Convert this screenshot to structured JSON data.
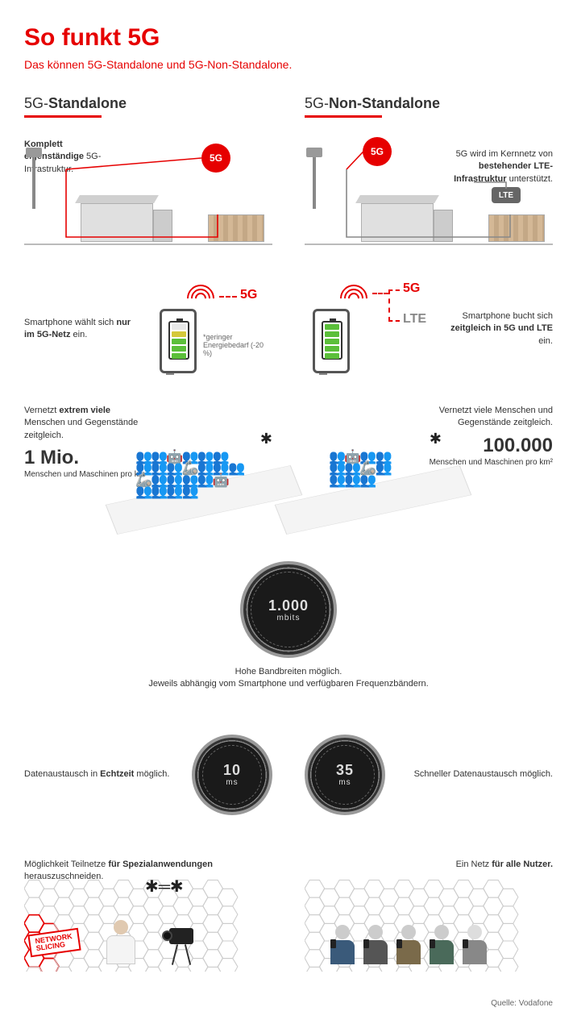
{
  "colors": {
    "accent": "#e60000",
    "text": "#333333",
    "text_light": "#666666",
    "battery_green": "#5bbf3a",
    "battery_yellow": "#d4c83a",
    "gauge_dark": "#1a1a1a",
    "gauge_ring": "#888888",
    "hex_gray": "#cccccc",
    "hex_red": "#e60000"
  },
  "header": {
    "title": "So funkt 5G",
    "subtitle": "Das können 5G-Standalone und 5G-Non-Standalone."
  },
  "columns": {
    "left": {
      "prefix": "5G-",
      "name": "Standalone"
    },
    "right": {
      "prefix": "5G-",
      "name": "Non-Standalone"
    }
  },
  "row1": {
    "left": {
      "text_html": "<b>Komplett eigenständige</b> 5G-Infrastruktur.",
      "badge": "5G"
    },
    "right": {
      "text_html": "5G wird im Kernnetz von <b>bestehender LTE-Infrastruktur</b> unterstützt.",
      "badge1": "5G",
      "badge2": "LTE"
    }
  },
  "row2": {
    "left": {
      "text_html": "Smartphone wählt sich <b>nur im 5G-Netz</b> ein.",
      "net1": "5G",
      "footnote": "*geringer Energiebedarf (-20 %)",
      "battery_bars": 4
    },
    "right": {
      "text_html": "Smartphone bucht sich <b>zeitgleich in 5G und LTE</b> ein.",
      "net1": "5G",
      "net2": "LTE",
      "battery_bars": 5
    }
  },
  "row3": {
    "left": {
      "text_html": "Vernetzt <b>extrem viele</b> Menschen und Gegenstände zeitgleich.",
      "number": "1 Mio.",
      "unit": "Menschen und Maschinen pro km²"
    },
    "right": {
      "text_html": "Vernetzt viele Menschen und Gegenstände zeitgleich.",
      "number": "100.000",
      "unit": "Menschen und Maschinen pro km²"
    }
  },
  "bandwidth": {
    "value": "1.000",
    "unit": "mbits",
    "caption1": "Hohe Bandbreiten möglich.",
    "caption2": "Jeweils abhängig vom Smartphone und verfügbaren Frequenzbändern."
  },
  "row5": {
    "left": {
      "text_html": "Datenaustausch in <b>Echtzeit</b> möglich.",
      "value": "10",
      "unit": "ms"
    },
    "right": {
      "text_html": "Schneller Datenaustausch möglich.",
      "value": "35",
      "unit": "ms"
    }
  },
  "row6": {
    "left": {
      "text_html": "Möglichkeit Teilnetze <b>für Spezialanwendungen</b> herauszuschneiden.",
      "badge_l1": "NETWORK",
      "badge_l2": "SLICING"
    },
    "right": {
      "text_html": "Ein Netz <b>für alle Nutzer.</b>"
    }
  },
  "source": "Quelle: Vodafone"
}
